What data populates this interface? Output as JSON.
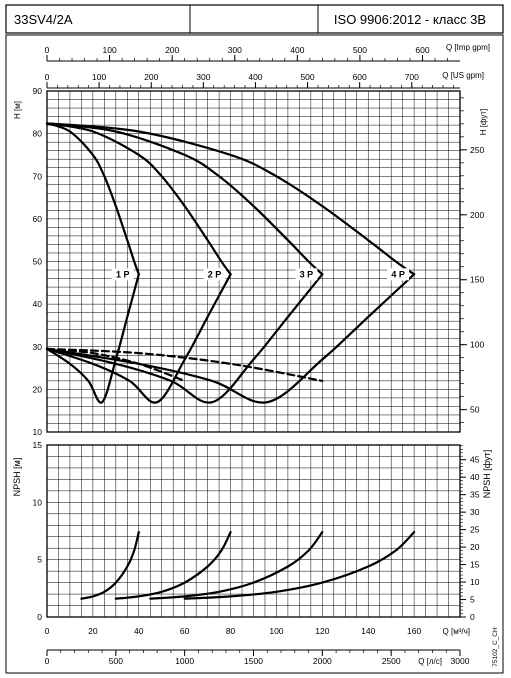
{
  "header": {
    "model": "33SV4/2A",
    "middle": "",
    "standard": "ISO 9906:2012 - класс 3В"
  },
  "axes": {
    "top_imp_label": "Q [Imp gpm]",
    "top_imp_ticks": [
      0,
      100,
      200,
      300,
      400,
      500,
      600
    ],
    "top_us_label": "Q [US gpm]",
    "top_us_ticks": [
      0,
      100,
      200,
      300,
      400,
      500,
      600,
      700
    ],
    "h_m_label": "H [м]",
    "h_m_ticks": [
      10,
      20,
      30,
      40,
      50,
      60,
      70,
      80,
      90
    ],
    "h_ft_label": "H [фут]",
    "h_ft_ticks": [
      50,
      100,
      150,
      200,
      250
    ],
    "npsh_m_label": "NPSH [м]",
    "npsh_m_ticks": [
      0,
      5,
      10,
      15
    ],
    "npsh_ft_label": "NPSH [фут]",
    "npsh_ft_ticks": [
      0,
      5,
      10,
      15,
      20,
      25,
      30,
      35,
      40,
      45
    ],
    "q_m3h_label": "Q [м³/ч]",
    "q_m3h_ticks": [
      0,
      20,
      40,
      60,
      80,
      100,
      120,
      140,
      160
    ],
    "q_ls_label": "Q [л/с]",
    "q_ls_ticks": [
      0,
      500,
      1000,
      1500,
      2000,
      2500,
      3000
    ]
  },
  "footnote": "75102_C_CH",
  "colors": {
    "line": "#000000",
    "grid": "#000000",
    "background": "#ffffff"
  },
  "chart_data": [
    {
      "type": "line",
      "panel": "head_and_efficiency",
      "title": "",
      "xlabel": "Q [м³/ч]",
      "ylabel": "H [м]",
      "xlim": [
        0,
        180
      ],
      "ylim": [
        10,
        90
      ],
      "series": [
        {
          "name": "1 P",
          "style": "solid",
          "x": [
            0,
            10,
            20,
            25,
            30,
            35,
            38,
            40
          ],
          "y": [
            82.4,
            80.5,
            75,
            70,
            63,
            55,
            50,
            47
          ]
        },
        {
          "name": "2 P",
          "style": "solid",
          "x": [
            0,
            20,
            40,
            50,
            60,
            70,
            76,
            80
          ],
          "y": [
            82.4,
            80.5,
            75,
            70,
            63,
            55,
            50,
            47
          ]
        },
        {
          "name": "3 P",
          "style": "solid",
          "x": [
            0,
            30,
            60,
            75,
            90,
            105,
            114,
            120
          ],
          "y": [
            82.4,
            80.5,
            75,
            70,
            63,
            55,
            50,
            47
          ]
        },
        {
          "name": "4 P",
          "style": "solid",
          "x": [
            0,
            40,
            80,
            100,
            120,
            140,
            152,
            160
          ],
          "y": [
            82.4,
            80.5,
            75,
            70,
            63,
            55,
            50,
            47
          ]
        },
        {
          "style": "solid",
          "x": [
            0,
            10,
            18,
            24,
            30,
            35,
            40
          ],
          "y": [
            29.5,
            26,
            22,
            17,
            27,
            37,
            47
          ]
        },
        {
          "style": "solid",
          "x": [
            0,
            20,
            36,
            48,
            60,
            70,
            80
          ],
          "y": [
            29.5,
            26,
            22,
            17,
            27,
            37,
            47
          ]
        },
        {
          "style": "solid",
          "x": [
            0,
            30,
            54,
            72,
            90,
            105,
            120
          ],
          "y": [
            29.5,
            26,
            22,
            17,
            27,
            37,
            47
          ]
        },
        {
          "style": "solid",
          "x": [
            0,
            40,
            72,
            96,
            120,
            140,
            160
          ],
          "y": [
            29.5,
            26,
            22,
            17,
            27,
            37,
            47
          ]
        },
        {
          "style": "dashed",
          "x": [
            0,
            40,
            80,
            120
          ],
          "y": [
            29.5,
            28.5,
            26,
            22
          ]
        },
        {
          "style": "dashed",
          "x": [
            0,
            20,
            40,
            60
          ],
          "y": [
            29.5,
            28.5,
            26,
            22
          ]
        }
      ]
    },
    {
      "type": "line",
      "panel": "npsh",
      "title": "",
      "xlabel": "Q [м³/ч]",
      "ylabel": "NPSH [м]",
      "xlim": [
        0,
        180
      ],
      "ylim": [
        0,
        15
      ],
      "series": [
        {
          "style": "solid",
          "x": [
            15,
            20,
            25,
            30,
            35,
            38,
            40
          ],
          "y": [
            1.6,
            1.8,
            2.2,
            3.0,
            4.4,
            5.8,
            7.4
          ]
        },
        {
          "style": "solid",
          "x": [
            30,
            40,
            50,
            60,
            70,
            76,
            80
          ],
          "y": [
            1.6,
            1.8,
            2.2,
            3.0,
            4.4,
            5.8,
            7.4
          ]
        },
        {
          "style": "solid",
          "x": [
            45,
            60,
            75,
            90,
            105,
            114,
            120
          ],
          "y": [
            1.6,
            1.8,
            2.2,
            3.0,
            4.4,
            5.8,
            7.4
          ]
        },
        {
          "style": "solid",
          "x": [
            60,
            80,
            100,
            120,
            140,
            152,
            160
          ],
          "y": [
            1.6,
            1.8,
            2.2,
            3.0,
            4.4,
            5.8,
            7.4
          ]
        }
      ]
    }
  ]
}
